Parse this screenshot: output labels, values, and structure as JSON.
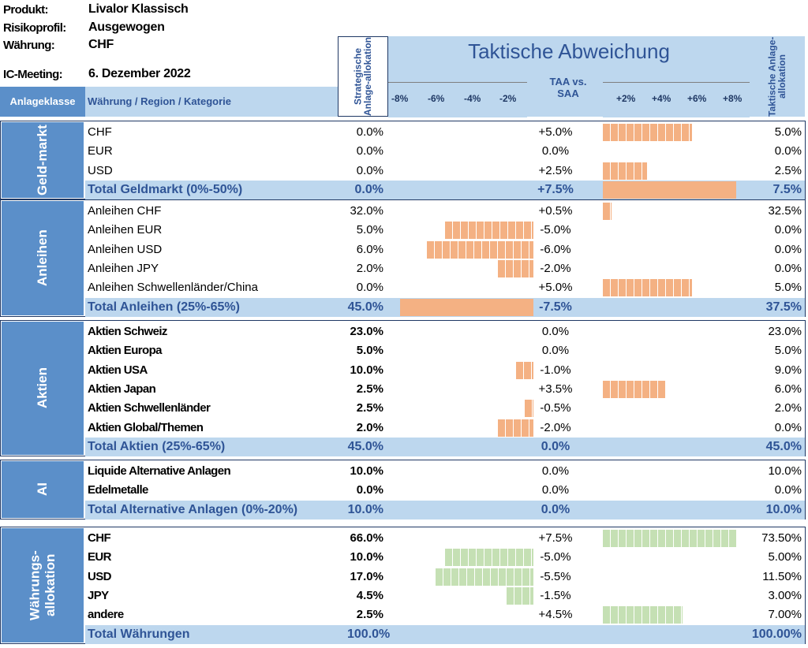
{
  "meta": {
    "produkt_label": "Produkt:",
    "produkt": "Livalor Klassisch",
    "risiko_label": "Risikoprofil:",
    "risiko": "Ausgewogen",
    "waehrung_label": "Währung:",
    "waehrung": "CHF",
    "ic_label": "IC-Meeting:",
    "ic": "6. Dezember 2022"
  },
  "header": {
    "anlageklasse": "Anlageklasse",
    "kategorie": "Währung / Region / Kategorie",
    "strategisch": "Strategische Anlage-allokation",
    "taktisch_title": "Taktische Abweichung",
    "taa_vs_saa_1": "TAA vs.",
    "taa_vs_saa_2": "SAA",
    "taktisch_alloc": "Taktische Anlage-allokation",
    "ticks_neg": [
      "-8%",
      "-6%",
      "-4%",
      "-2%"
    ],
    "ticks_pos": [
      "+2%",
      "+4%",
      "+6%",
      "+8%"
    ]
  },
  "groups": [
    {
      "label": "Geld-markt",
      "rows": [
        {
          "name": "CHF",
          "saa": "0.0%",
          "diff": "+5.0%",
          "taa": "5.0%",
          "d": 5.0
        },
        {
          "name": "EUR",
          "saa": "0.0%",
          "diff": "0.0%",
          "taa": "0.0%",
          "d": 0
        },
        {
          "name": "USD",
          "saa": "0.0%",
          "diff": "+2.5%",
          "taa": "2.5%",
          "d": 2.5
        }
      ],
      "total": {
        "name": "Total Geldmarkt (0%-50%)",
        "saa": "0.0%",
        "diff": "+7.5%",
        "taa": "7.5%",
        "d": 7.5
      }
    },
    {
      "label": "Anleihen",
      "rows": [
        {
          "name": "Anleihen CHF",
          "saa": "32.0%",
          "diff": "+0.5%",
          "taa": "32.5%",
          "d": 0.5
        },
        {
          "name": "Anleihen EUR",
          "saa": "5.0%",
          "diff": "-5.0%",
          "taa": "0.0%",
          "d": -5.0
        },
        {
          "name": "Anleihen USD",
          "saa": "6.0%",
          "diff": "-6.0%",
          "taa": "0.0%",
          "d": -6.0
        },
        {
          "name": "Anleihen JPY",
          "saa": "2.0%",
          "diff": "-2.0%",
          "taa": "0.0%",
          "d": -2.0
        },
        {
          "name": "Anleihen Schwellenländer/China",
          "saa": "0.0%",
          "diff": "+5.0%",
          "taa": "5.0%",
          "d": 5.0
        }
      ],
      "total": {
        "name": "Total Anleihen (25%-65%)",
        "saa": "45.0%",
        "diff": "-7.5%",
        "taa": "37.5%",
        "d": -7.5
      }
    },
    {
      "label": "Aktien",
      "bold": true,
      "rows": [
        {
          "name": "Aktien Schweiz",
          "saa": "23.0%",
          "diff": "0.0%",
          "taa": "23.0%",
          "d": 0
        },
        {
          "name": "Aktien Europa",
          "saa": "5.0%",
          "diff": "0.0%",
          "taa": "5.0%",
          "d": 0
        },
        {
          "name": "Aktien USA",
          "saa": "10.0%",
          "diff": "-1.0%",
          "taa": "9.0%",
          "d": -1.0
        },
        {
          "name": "Aktien Japan",
          "saa": "2.5%",
          "diff": "+3.5%",
          "taa": "6.0%",
          "d": 3.5
        },
        {
          "name": "Aktien Schwellenländer",
          "saa": "2.5%",
          "diff": "-0.5%",
          "taa": "2.0%",
          "d": -0.5
        },
        {
          "name": "Aktien Global/Themen",
          "saa": "2.0%",
          "diff": "-2.0%",
          "taa": "0.0%",
          "d": -2.0
        }
      ],
      "total": {
        "name": "Total Aktien (25%-65%)",
        "saa": "45.0%",
        "diff": "0.0%",
        "taa": "45.0%",
        "d": 0
      }
    },
    {
      "label": "AI",
      "bold": true,
      "rows": [
        {
          "name": "Liquide Alternative Anlagen",
          "saa": "10.0%",
          "diff": "0.0%",
          "taa": "10.0%",
          "d": 0
        },
        {
          "name": "Edelmetalle",
          "saa": "0.0%",
          "diff": "0.0%",
          "taa": "0.0%",
          "d": 0
        }
      ],
      "total": {
        "name": "Total Alternative Anlagen (0%-20%)",
        "saa": "10.0%",
        "diff": "0.0%",
        "taa": "10.0%",
        "d": 0
      }
    },
    {
      "label": "Währungs-allokation",
      "bold": true,
      "green": true,
      "rows": [
        {
          "name": "CHF",
          "saa": "66.0%",
          "diff": "+7.5%",
          "taa": "73.50%",
          "d": 7.5
        },
        {
          "name": "EUR",
          "saa": "10.0%",
          "diff": "-5.0%",
          "taa": "5.00%",
          "d": -5.0
        },
        {
          "name": "USD",
          "saa": "17.0%",
          "diff": "-5.5%",
          "taa": "11.50%",
          "d": -5.5
        },
        {
          "name": "JPY",
          "saa": "4.5%",
          "diff": "-1.5%",
          "taa": "3.00%",
          "d": -1.5
        },
        {
          "name": "andere",
          "saa": "2.5%",
          "diff": "+4.5%",
          "taa": "7.00%",
          "d": 4.5
        }
      ],
      "total": {
        "name": "Total Währungen",
        "saa": "100.0%",
        "diff": "",
        "taa": "100.00%",
        "d": 0
      }
    }
  ]
}
